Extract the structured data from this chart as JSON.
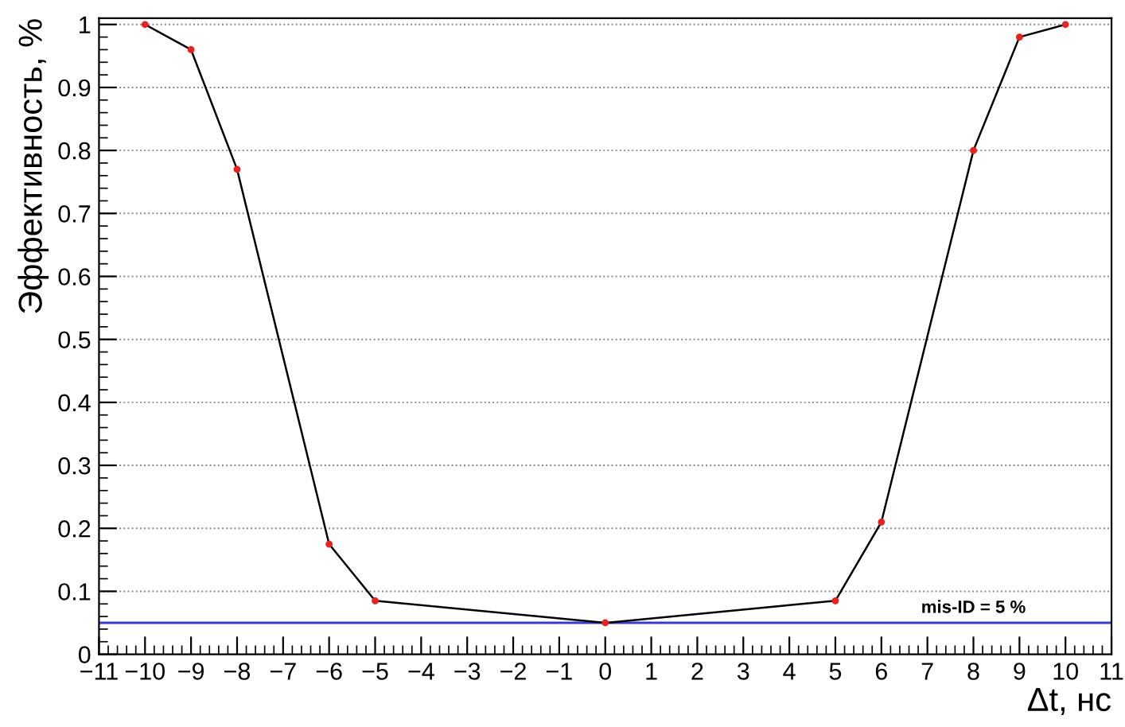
{
  "chart_data": {
    "type": "line",
    "xlabel": "Δt, нс",
    "ylabel": "Эффективность, %",
    "x": [
      -10,
      -9,
      -8,
      -6,
      -5,
      0,
      5,
      6,
      8,
      9,
      10
    ],
    "series": [
      {
        "color": "#000000",
        "colors": [
          "#e8231f",
          "#e8231f",
          "#e8231f",
          "#e8231f",
          "#e8231f",
          "#e8231f",
          "#e8231f",
          "#e8231f",
          "#e8231f",
          "#e8231f",
          "#e8231f"
        ],
        "values": [
          1.0,
          0.96,
          0.77,
          0.175,
          0.085,
          0.05,
          0.085,
          0.21,
          0.8,
          0.98,
          1.0
        ]
      }
    ],
    "marker": "circle",
    "line_style": "solid",
    "ref_lines": [
      {
        "axis": "y",
        "value": 0.05,
        "label": "mis-ID = 5 %",
        "color": "#3a3ad0"
      }
    ],
    "xlim": [
      -11,
      11
    ],
    "xticks": [
      -11,
      -10,
      -9,
      -8,
      -7,
      -6,
      -5,
      -4,
      -3,
      -2,
      -1,
      0,
      1,
      2,
      3,
      4,
      5,
      6,
      7,
      8,
      9,
      10,
      11
    ],
    "ylim": [
      0,
      1.01
    ],
    "yticks": [
      0,
      0.1,
      0.2,
      0.3,
      0.4,
      0.5,
      0.6,
      0.7,
      0.8,
      0.9,
      1
    ],
    "grid": "y",
    "legend": false
  }
}
